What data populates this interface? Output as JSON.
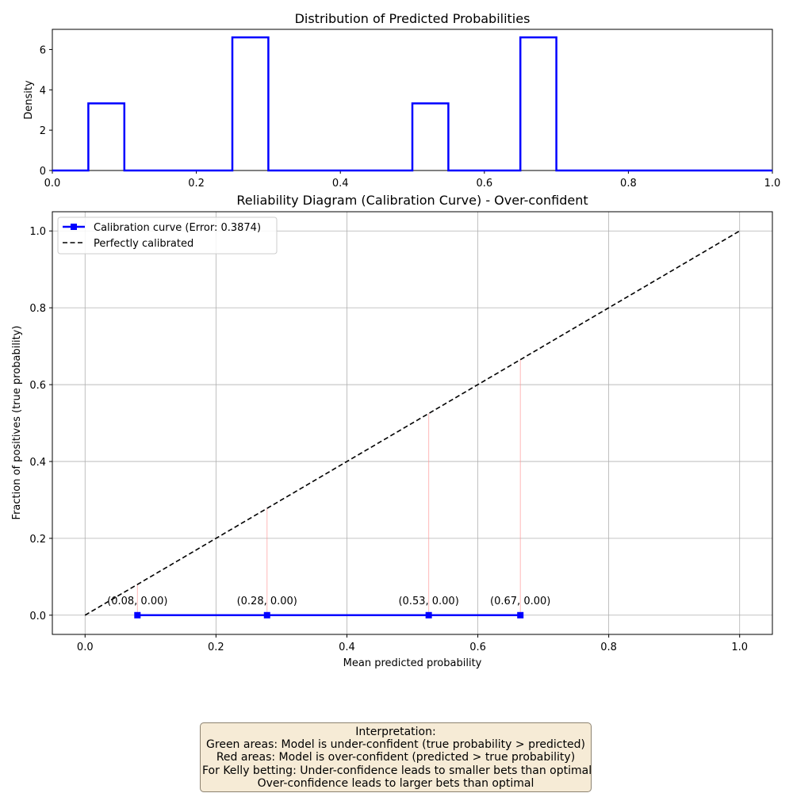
{
  "chart_data": [
    {
      "type": "histogram",
      "title": "Distribution of Predicted Probabilities",
      "xlabel": "",
      "ylabel": "Density",
      "xlim": [
        0.0,
        1.0
      ],
      "ylim": [
        0,
        7
      ],
      "xticks": [
        "0.0",
        "0.2",
        "0.4",
        "0.6",
        "0.8",
        "1.0"
      ],
      "yticks": [
        "0",
        "2",
        "4",
        "6"
      ],
      "bin_edges": [
        0.0,
        0.05,
        0.1,
        0.15,
        0.2,
        0.25,
        0.3,
        0.35,
        0.4,
        0.45,
        0.5,
        0.55,
        0.6,
        0.65,
        0.7,
        0.75,
        0.8,
        0.85,
        0.9,
        0.95,
        1.0
      ],
      "values": [
        0,
        3.33,
        0,
        0,
        0,
        6.6,
        0,
        0,
        0,
        0,
        3.33,
        0,
        0,
        6.6,
        0,
        0,
        0,
        0,
        0,
        0
      ],
      "color": "#0000ff",
      "grid": false
    },
    {
      "type": "line",
      "title": "Reliability Diagram (Calibration Curve) - Over-confident",
      "xlabel": "Mean predicted probability",
      "ylabel": "Fraction of positives (true probability)",
      "xlim": [
        -0.05,
        1.05
      ],
      "ylim": [
        -0.05,
        1.05
      ],
      "xticks": [
        "0.0",
        "0.2",
        "0.4",
        "0.6",
        "0.8",
        "1.0"
      ],
      "yticks": [
        "0.0",
        "0.2",
        "0.4",
        "0.6",
        "0.8",
        "1.0"
      ],
      "grid": true,
      "legend_position": "upper-left",
      "series": [
        {
          "name": "Calibration curve (Error: 0.3874)",
          "x": [
            0.08,
            0.278,
            0.525,
            0.665
          ],
          "y": [
            0.0,
            0.0,
            0.0,
            0.0
          ],
          "color": "#0000ff",
          "marker": "square"
        },
        {
          "name": "Perfectly calibrated",
          "x": [
            0.0,
            1.0
          ],
          "y": [
            0.0,
            1.0
          ],
          "color": "#000000",
          "style": "dashed"
        }
      ],
      "point_labels": [
        "(0.08, 0.00)",
        "(0.28, 0.00)",
        "(0.53, 0.00)",
        "(0.67, 0.00)"
      ],
      "error_fill_color": "#ff9a9a"
    }
  ],
  "interpretation": {
    "lines": [
      "Interpretation:",
      "Green areas: Model is under-confident (true probability > predicted)",
      "Red areas: Model is over-confident (predicted > true probability)",
      "For Kelly betting: Under-confidence leads to smaller bets than optimal",
      "Over-confidence leads to larger bets than optimal"
    ]
  }
}
